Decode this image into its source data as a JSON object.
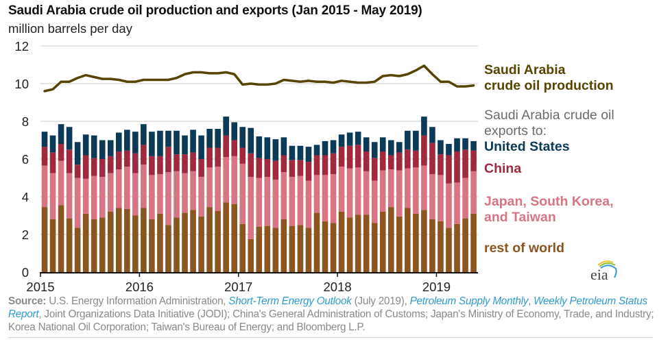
{
  "title": "Saudi Arabia crude oil production and exports (Jan 2015 - May 2019)",
  "subtitle": "million barrels per day",
  "legend": {
    "production": [
      "Saudi Arabia",
      "crude oil production"
    ],
    "exports_header": [
      "Saudi Arabia crude oil",
      "exports to:"
    ],
    "united_states": "United States",
    "china": "China",
    "japan_korea_taiwan": [
      "Japan, South Korea,",
      "and Taiwan"
    ],
    "rest_of_world": "rest of world"
  },
  "logo": "eia",
  "source": {
    "label": "Source:",
    "parts": [
      {
        "text": " U.S. Energy Information Administration, ",
        "link": false
      },
      {
        "text": "Short-Term Energy Outlook",
        "link": true
      },
      {
        "text": " (July 2019), ",
        "link": false
      },
      {
        "text": "Petroleum Supply Monthly",
        "link": true
      },
      {
        "text": ", ",
        "link": false
      },
      {
        "text": "Weekly Petroleum Status Report",
        "link": true
      },
      {
        "text": ", Joint Organizations Data Initiative (JODI); China's General Administration of Customs; Japan's Ministry of Economy, Trade, and Industry; Korea National Oil Corporation; Taiwan's Bureau of Energy; and Bloomberg L.P.",
        "link": false
      }
    ]
  },
  "chart_data": {
    "type": "bar",
    "stacked": true,
    "title": "Saudi Arabia crude oil production and exports (Jan 2015 - May 2019)",
    "ylabel": "million barrels per day",
    "xlabel": "",
    "ylim": [
      0,
      12
    ],
    "yticks": [
      0,
      2,
      4,
      6,
      8,
      10,
      12
    ],
    "xticks": [
      "2015",
      "2016",
      "2017",
      "2018",
      "2019"
    ],
    "grid": true,
    "legend_position": "right",
    "categories": [
      "Jan 2015",
      "Feb 2015",
      "Mar 2015",
      "Apr 2015",
      "May 2015",
      "Jun 2015",
      "Jul 2015",
      "Aug 2015",
      "Sep 2015",
      "Oct 2015",
      "Nov 2015",
      "Dec 2015",
      "Jan 2016",
      "Feb 2016",
      "Mar 2016",
      "Apr 2016",
      "May 2016",
      "Jun 2016",
      "Jul 2016",
      "Aug 2016",
      "Sep 2016",
      "Oct 2016",
      "Nov 2016",
      "Dec 2016",
      "Jan 2017",
      "Feb 2017",
      "Mar 2017",
      "Apr 2017",
      "May 2017",
      "Jun 2017",
      "Jul 2017",
      "Aug 2017",
      "Sep 2017",
      "Oct 2017",
      "Nov 2017",
      "Dec 2017",
      "Jan 2018",
      "Feb 2018",
      "Mar 2018",
      "Apr 2018",
      "May 2018",
      "Jun 2018",
      "Jul 2018",
      "Aug 2018",
      "Sep 2018",
      "Oct 2018",
      "Nov 2018",
      "Dec 2018",
      "Jan 2019",
      "Feb 2019",
      "Mar 2019",
      "Apr 2019",
      "May 2019"
    ],
    "series": [
      {
        "name": "rest of world",
        "color": "#8b5520",
        "values": [
          3.45,
          2.8,
          3.55,
          2.85,
          2.35,
          3.1,
          2.8,
          2.9,
          3.2,
          3.4,
          3.35,
          3.0,
          3.4,
          2.8,
          3.1,
          2.5,
          2.9,
          3.15,
          3.3,
          2.95,
          3.45,
          3.25,
          3.7,
          3.6,
          2.55,
          1.75,
          2.4,
          2.45,
          2.35,
          2.8,
          2.45,
          2.5,
          2.35,
          3.15,
          2.7,
          2.6,
          3.2,
          2.9,
          3.05,
          3.05,
          2.6,
          3.2,
          3.45,
          2.95,
          3.4,
          3.1,
          3.3,
          2.8,
          2.7,
          2.35,
          2.55,
          2.85,
          3.1
        ]
      },
      {
        "name": "Japan, South Korea, and Taiwan",
        "color": "#d97583",
        "values": [
          2.2,
          2.45,
          2.35,
          2.4,
          2.65,
          1.85,
          2.3,
          2.15,
          2.05,
          2.05,
          2.25,
          2.25,
          2.3,
          2.35,
          2.1,
          2.8,
          2.45,
          2.1,
          2.05,
          2.1,
          2.1,
          2.35,
          2.4,
          2.55,
          3.2,
          3.3,
          2.6,
          2.6,
          2.55,
          2.5,
          2.6,
          2.6,
          2.5,
          2.0,
          2.45,
          2.6,
          2.4,
          2.6,
          2.5,
          2.3,
          2.25,
          2.2,
          2.0,
          2.45,
          2.1,
          2.45,
          2.35,
          2.4,
          2.45,
          2.35,
          2.2,
          2.15,
          2.25
        ]
      },
      {
        "name": "China",
        "color": "#a0293e",
        "values": [
          1.0,
          1.1,
          0.9,
          1.25,
          0.7,
          1.25,
          0.95,
          0.95,
          0.9,
          0.95,
          0.85,
          1.05,
          1.05,
          1.0,
          0.95,
          1.35,
          0.9,
          1.0,
          1.0,
          0.95,
          1.05,
          1.0,
          1.15,
          0.85,
          0.85,
          1.25,
          1.05,
          0.95,
          1.0,
          0.9,
          0.9,
          0.85,
          1.0,
          1.05,
          1.05,
          1.1,
          1.05,
          1.2,
          1.2,
          1.05,
          1.2,
          1.0,
          0.75,
          0.95,
          1.0,
          0.9,
          1.6,
          1.65,
          1.1,
          1.5,
          1.65,
          1.5,
          1.1
        ]
      },
      {
        "name": "United States",
        "color": "#0b3a58",
        "values": [
          0.8,
          0.9,
          1.05,
          1.2,
          1.2,
          1.1,
          1.2,
          1.0,
          0.85,
          1.0,
          1.1,
          1.15,
          1.1,
          1.3,
          1.35,
          0.85,
          1.25,
          1.0,
          1.2,
          1.25,
          1.0,
          1.0,
          1.0,
          0.95,
          1.1,
          1.35,
          1.15,
          1.15,
          1.15,
          0.95,
          0.75,
          0.75,
          0.8,
          0.55,
          0.75,
          0.7,
          0.65,
          0.7,
          0.7,
          0.75,
          0.85,
          0.75,
          0.8,
          0.55,
          1.0,
          1.05,
          1.0,
          0.85,
          0.75,
          0.6,
          0.7,
          0.6,
          0.5
        ]
      }
    ],
    "line_series": {
      "name": "Saudi Arabia crude oil production",
      "color": "#574400",
      "values": [
        9.6,
        9.7,
        10.1,
        10.1,
        10.3,
        10.45,
        10.35,
        10.25,
        10.25,
        10.2,
        10.1,
        10.1,
        10.2,
        10.2,
        10.2,
        10.2,
        10.3,
        10.5,
        10.6,
        10.6,
        10.55,
        10.55,
        10.6,
        10.5,
        9.95,
        10.0,
        9.95,
        9.95,
        10.0,
        10.2,
        10.15,
        10.1,
        10.15,
        10.1,
        10.1,
        10.05,
        10.15,
        10.1,
        10.05,
        10.05,
        10.1,
        10.4,
        10.45,
        10.4,
        10.5,
        10.7,
        10.95,
        10.5,
        10.1,
        10.1,
        9.85,
        9.85,
        9.9
      ]
    }
  }
}
